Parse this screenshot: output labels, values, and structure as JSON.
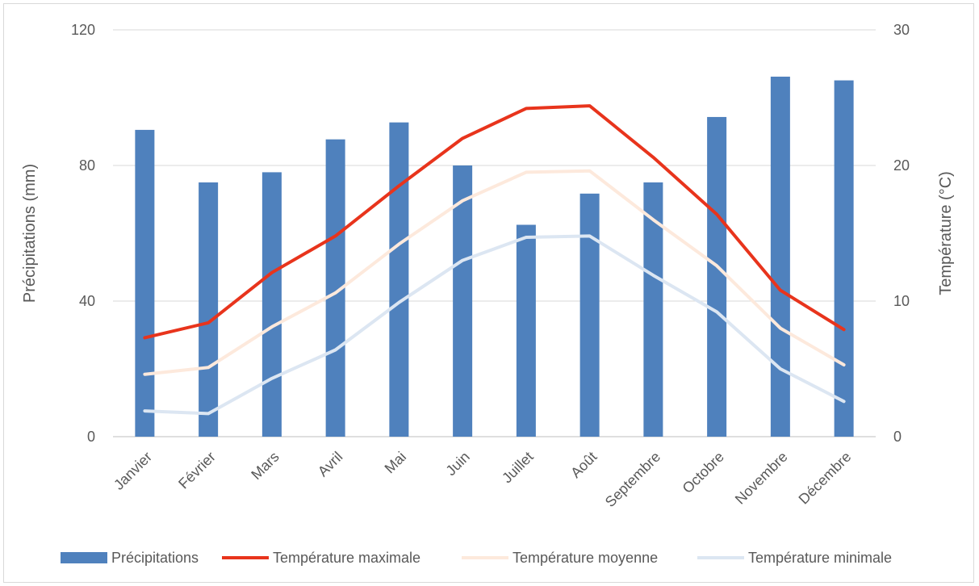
{
  "chart_data": {
    "type": "bar",
    "categories": [
      "Janvier",
      "Février",
      "Mars",
      "Avril",
      "Mai",
      "Juin",
      "Juillet",
      "Août",
      "Septembre",
      "Octobre",
      "Novembre",
      "Décembre"
    ],
    "bar_series": {
      "name": "Précipitations",
      "axis": "left",
      "color": "#4F81BD",
      "values": [
        90.5,
        75,
        78,
        87.7,
        92.7,
        80,
        62.5,
        71.7,
        75,
        94.3,
        106.2,
        105.1
      ]
    },
    "line_series": [
      {
        "name": "Température maximale",
        "axis": "right",
        "color": "#E8341C",
        "values": [
          7.3,
          8.4,
          12.1,
          14.8,
          18.5,
          22.0,
          24.2,
          24.4,
          20.6,
          16.4,
          10.8,
          7.9
        ]
      },
      {
        "name": "Température moyenne",
        "axis": "right",
        "color": "#FDE9DC",
        "values": [
          4.6,
          5.1,
          8.1,
          10.6,
          14.2,
          17.4,
          19.5,
          19.6,
          16.0,
          12.6,
          8.0,
          5.3
        ]
      },
      {
        "name": "Température minimale",
        "axis": "right",
        "color": "#DCE6F2",
        "values": [
          1.9,
          1.7,
          4.3,
          6.4,
          9.9,
          13.0,
          14.7,
          14.8,
          11.9,
          9.2,
          5.0,
          2.6
        ]
      }
    ],
    "ylabel_left": "Précipitations (mm)",
    "ylabel_right": "Température (°C)",
    "ylim_left": [
      0,
      120
    ],
    "ylim_right": [
      0,
      30
    ],
    "yticks_left": [
      "0",
      "40",
      "80",
      "120"
    ],
    "yticks_right": [
      "0",
      "10",
      "20",
      "30"
    ],
    "grid": true,
    "legend_position": "bottom"
  }
}
